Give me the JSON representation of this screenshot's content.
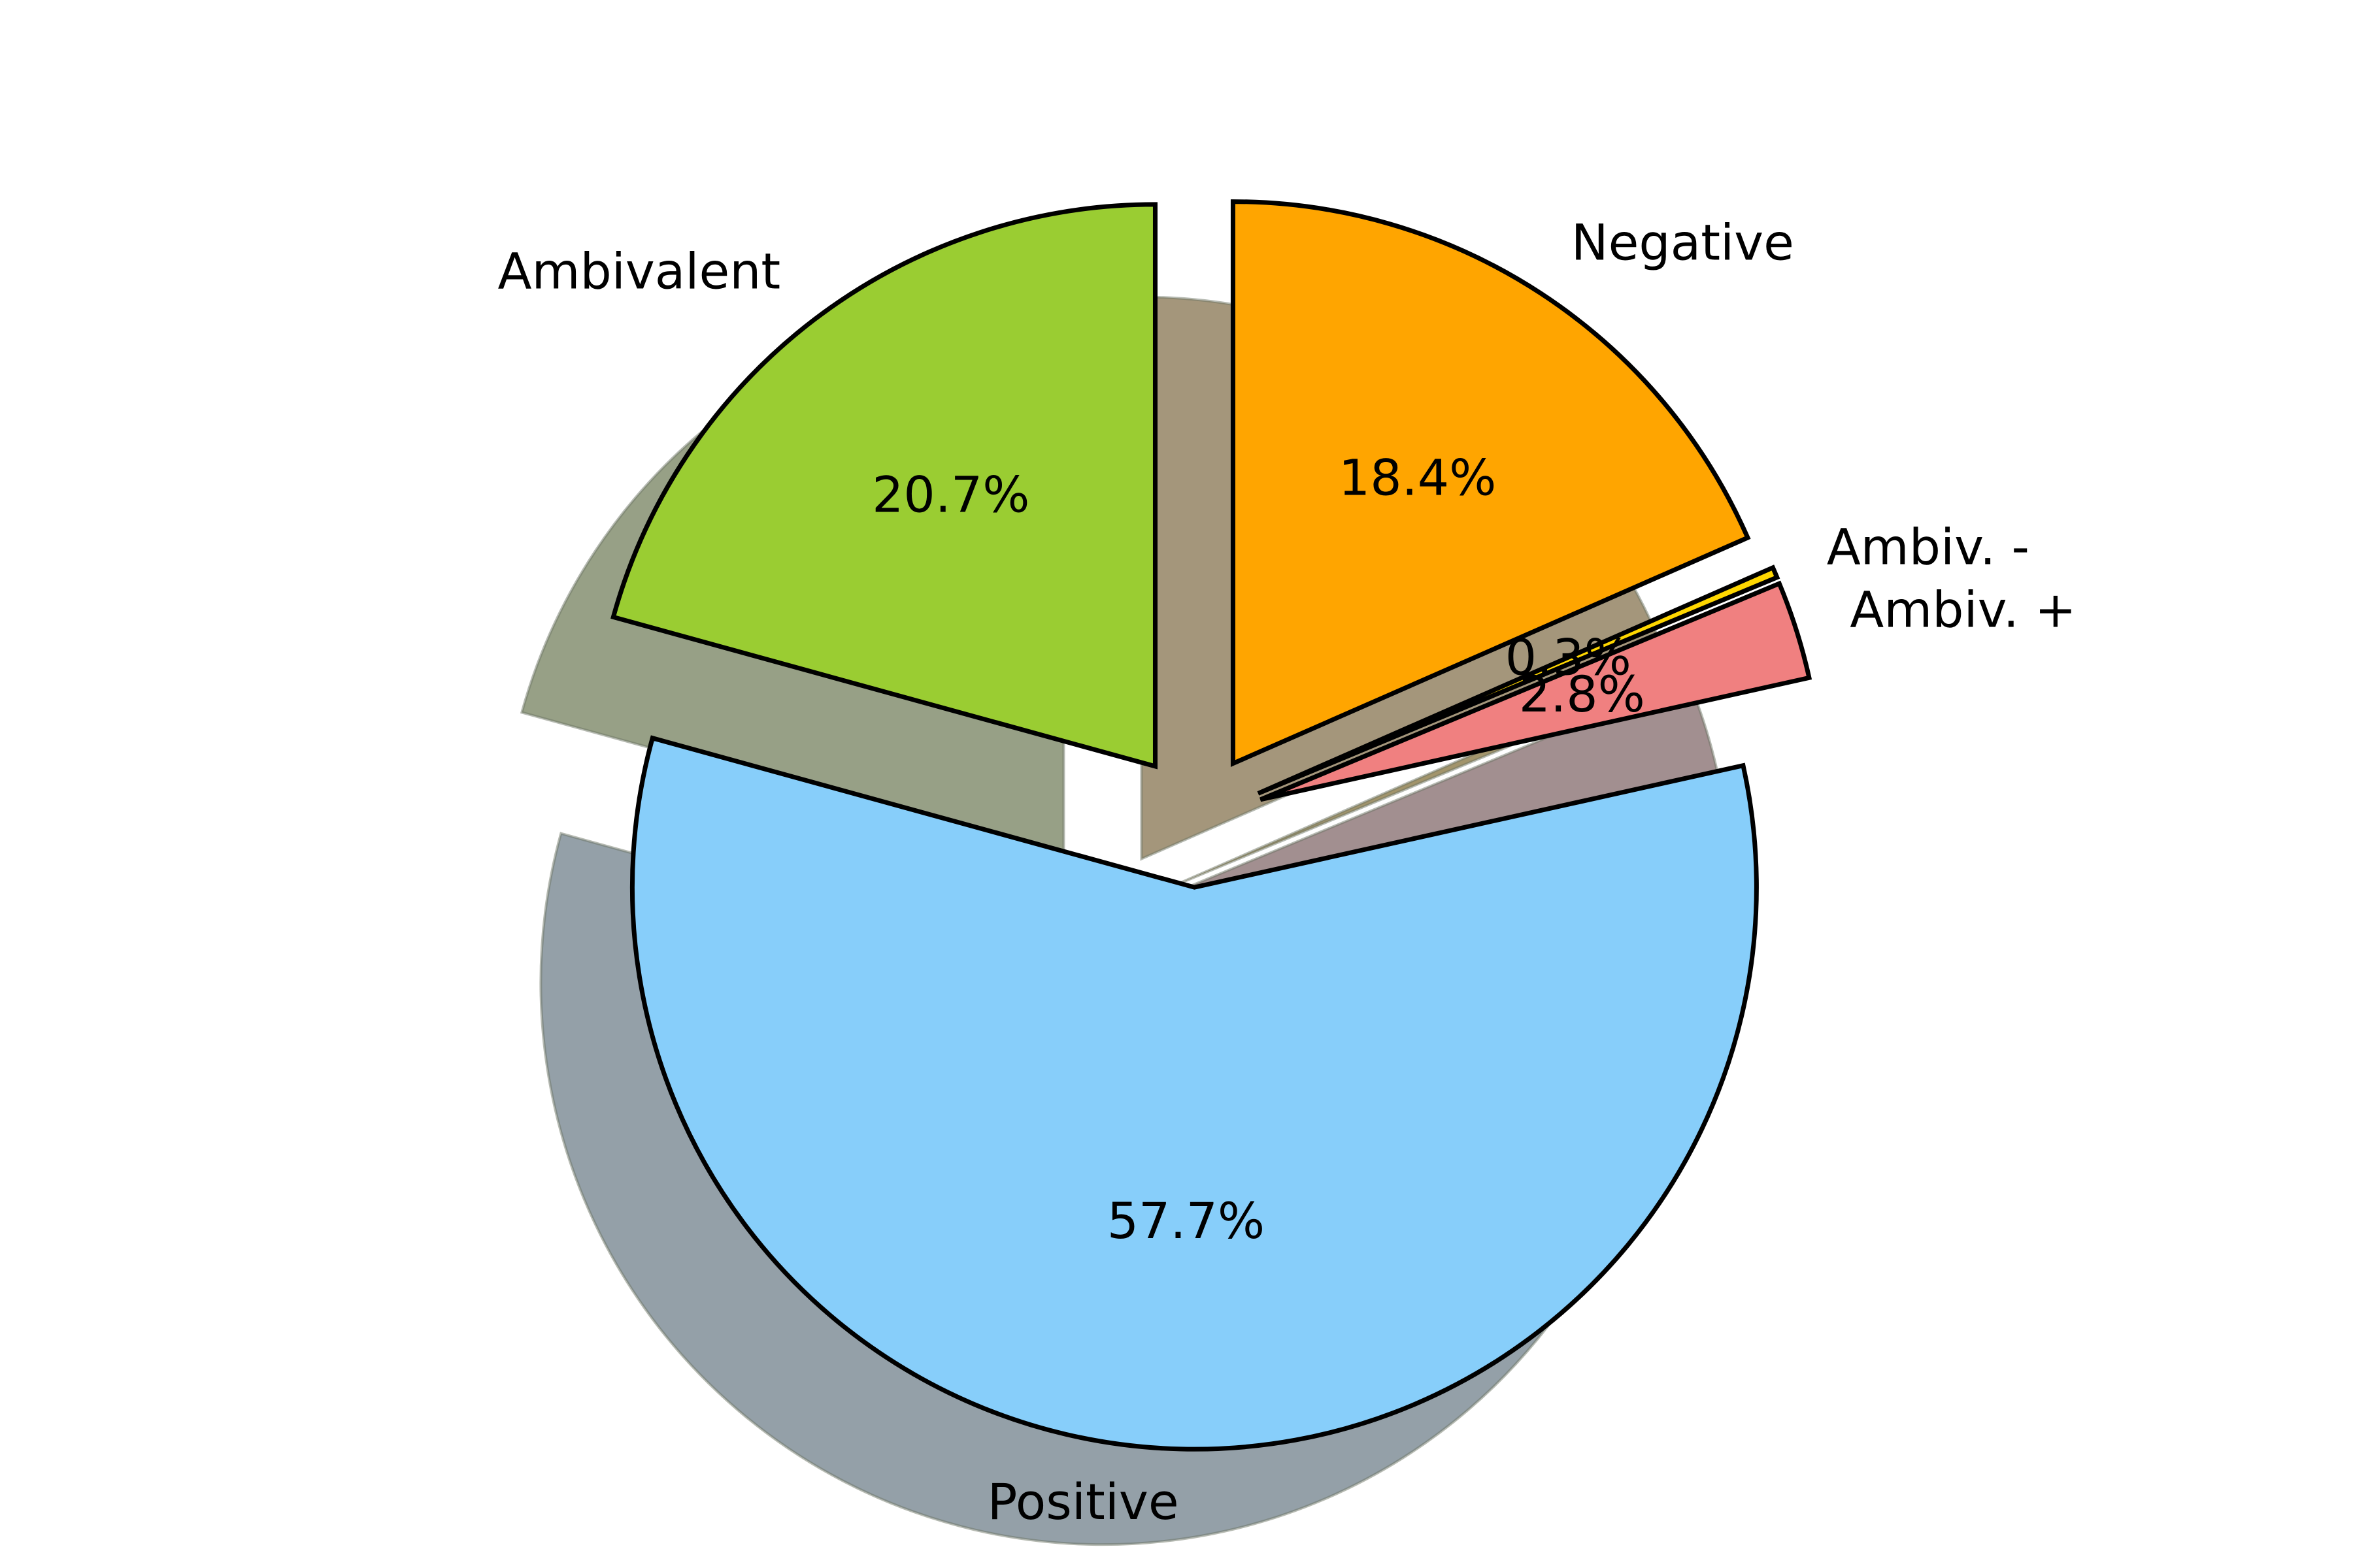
{
  "chart_data": {
    "type": "pie",
    "title": "",
    "start_angle_deg": 90,
    "direction": "counterclockwise",
    "shadow": true,
    "exploded": true,
    "slices": [
      {
        "label": "Ambivalent",
        "value": 20.7,
        "pct_label": "20.7%",
        "color": "#9ACD32"
      },
      {
        "label": "Positive",
        "value": 57.7,
        "pct_label": "57.7%",
        "color": "#87CEFA"
      },
      {
        "label": "Ambiv. +",
        "value": 2.8,
        "pct_label": "2.8%",
        "color": "#F08080"
      },
      {
        "label": "Ambiv. -",
        "value": 0.3,
        "pct_label": "0.3%",
        "color": "#FFD700"
      },
      {
        "label": "Negative",
        "value": 18.4,
        "pct_label": "18.4%",
        "color": "#FFA500"
      }
    ]
  }
}
